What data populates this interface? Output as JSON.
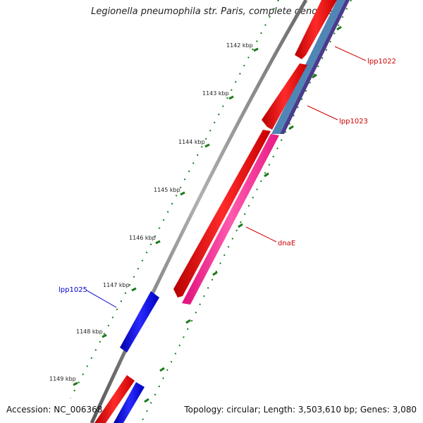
{
  "title": "Legionella pneumophila str. Paris, complete genome",
  "accession": "Accession: NC_006368",
  "summary": "Topology: circular; Length: 3,503,610 bp; Genes: 3,080",
  "scale": {
    "labels": [
      "1142 kbp",
      "1143 kbp",
      "1144 kbp",
      "1145 kbp",
      "1146 kbp",
      "1147 kbp",
      "1148 kbp",
      "1149 kbp"
    ]
  },
  "genes": [
    {
      "label": "lpp1022",
      "color": "#cc0000"
    },
    {
      "label": "lpp1023",
      "color": "#cc0000"
    },
    {
      "label": "dnaE",
      "color": "#cc0000"
    },
    {
      "label": "lpp1025",
      "color": "#0000cc"
    }
  ],
  "colors": {
    "backbone": "#7a7a7a",
    "cds_forward": "#ee0000",
    "cds_reverse": "#0000ee",
    "cog_pink": "#ff2d8f",
    "cog_steel": "#4f86b5",
    "cog_purple": "#4b3a8c",
    "tick": "#1a7a1a"
  }
}
